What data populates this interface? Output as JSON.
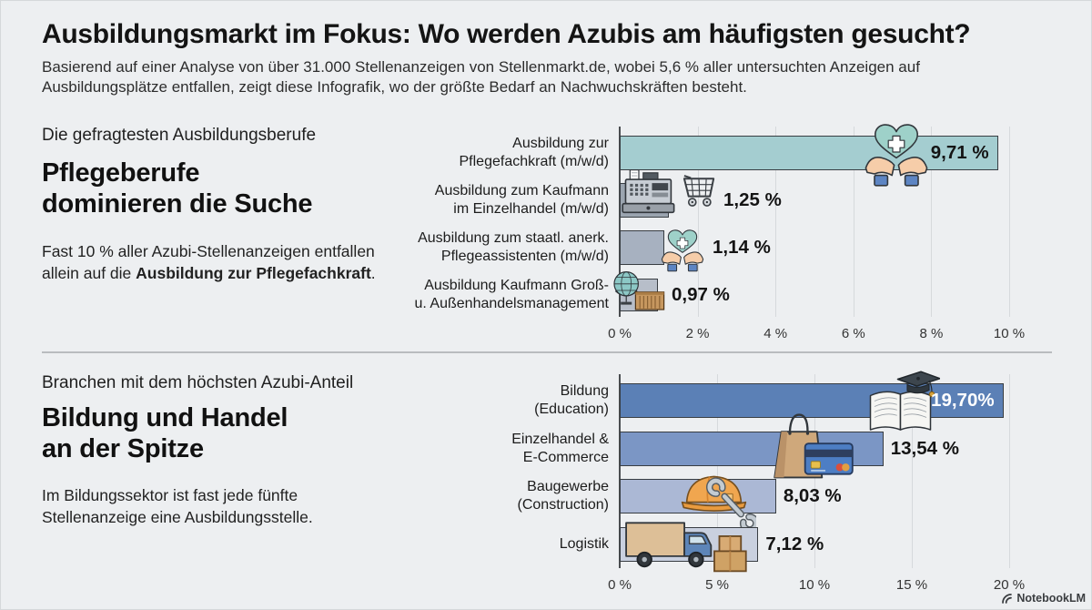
{
  "header": {
    "title": "Ausbildungsmarkt im Fokus: Wo werden Azubis am häufigsten gesucht?",
    "subtitle": "Basierend auf einer Analyse von über 31.000 Stellenanzeigen von Stellenmarkt.de, wobei 5,6 % aller untersuchten Anzeigen auf\nAusbildungsplätze entfallen, zeigt diese Infografik, wo der größte Bedarf an Nachwuchskräften besteht."
  },
  "sections": [
    {
      "eyebrow": "Die gefragtesten Ausbildungsberufe",
      "heading": "Pflegeberufe\ndominieren die Suche",
      "body_prefix": "Fast 10 % aller Azubi-Stellenanzeigen entfallen allein auf die ",
      "body_bold": "Ausbildung zur Pflegefachkraft",
      "body_suffix": "."
    },
    {
      "eyebrow": "Branchen mit dem höchsten Azubi-Anteil",
      "heading": "Bildung und Handel\nan der Spitze",
      "body_prefix": "Im Bildungssektor ist fast jede fünfte Stellenanzeige eine Ausbildungsstelle.",
      "body_bold": "",
      "body_suffix": ""
    }
  ],
  "chart_data": [
    {
      "type": "bar",
      "orientation": "horizontal",
      "title": "Die gefragtesten Ausbildungsberufe",
      "categories": [
        "Ausbildung zur\nPflegefachkraft (m/w/d)",
        "Ausbildung zum Kaufmann\nim Einzelhandel (m/w/d)",
        "Ausbildung zum staatl. anerk.\nPflegeassistenten (m/w/d)",
        "Ausbildung Kaufmann Groß-\nu. Außenhandelsmanagement"
      ],
      "values": [
        9.71,
        1.25,
        1.14,
        0.97
      ],
      "value_labels": [
        "9,71 %",
        "1,25 %",
        "1,14 %",
        "0,97 %"
      ],
      "xlim": [
        0,
        10
      ],
      "ticks": [
        0,
        2,
        4,
        6,
        8,
        10
      ],
      "tick_labels": [
        "0 %",
        "2 %",
        "4 %",
        "6 %",
        "8 %",
        "10 %"
      ],
      "bar_colors": [
        "#a4cdd0",
        "#9ba5b0",
        "#a7b1c0",
        "#b7bec9"
      ],
      "value_inside": [
        true,
        false,
        false,
        false
      ],
      "value_colors": [
        "#141414",
        "#141414",
        "#141414",
        "#141414"
      ],
      "icons": [
        "care-heart-hands-icon",
        "cash-register-cart-icon",
        "care-heart-hands-icon",
        "globe-container-icon"
      ],
      "grid": true,
      "legend": false
    },
    {
      "type": "bar",
      "orientation": "horizontal",
      "title": "Branchen mit dem höchsten Azubi-Anteil",
      "categories": [
        "Bildung\n(Education)",
        "Einzelhandel &\nE-Commerce",
        "Baugewerbe\n(Construction)",
        "Logistik"
      ],
      "values": [
        19.7,
        13.54,
        8.03,
        7.12
      ],
      "value_labels": [
        "19,70%",
        "13,54 %",
        "8,03 %",
        "7,12 %"
      ],
      "xlim": [
        0,
        20
      ],
      "ticks": [
        0,
        5,
        10,
        15,
        20
      ],
      "tick_labels": [
        "0 %",
        "5 %",
        "10 %",
        "15 %",
        "20 %"
      ],
      "bar_colors": [
        "#5b80b6",
        "#7b96c5",
        "#abb8d5",
        "#c9d0df"
      ],
      "value_inside": [
        true,
        false,
        false,
        false
      ],
      "value_colors": [
        "#ffffff",
        "#141414",
        "#141414",
        "#141414"
      ],
      "icons": [
        "book-gradcap-icon",
        "bag-card-icon",
        "hardhat-wrench-icon",
        "truck-boxes-icon"
      ],
      "grid": true,
      "legend": false
    }
  ],
  "footer": {
    "brand": "NotebookLM"
  },
  "colors": {
    "background": "#edeff1",
    "accent_teal": "#a4cdd0",
    "accent_blue": "#5b80b6",
    "gridline": "#d6d9dc",
    "axis": "#4a4d50",
    "divider": "#b9bcbf"
  }
}
